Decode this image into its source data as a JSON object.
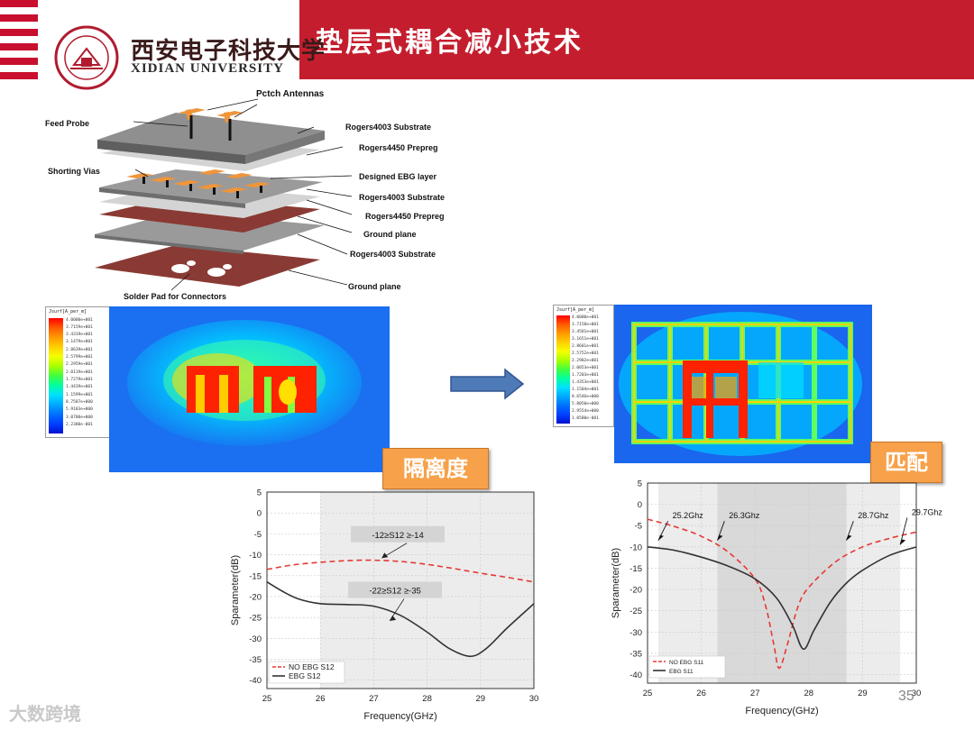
{
  "header": {
    "title": "垫层式耦合减小技术",
    "university_cn": "西安电子科技大学",
    "university_en": "XIDIAN UNIVERSITY",
    "logo_icon": "xidian-university-seal"
  },
  "stack_diagram": {
    "labels": {
      "patch_antennas": "Pctch Antennas",
      "feed_probe": "Feed Probe",
      "rogers4003_top": "Rogers4003  Substrate",
      "rogers4450_top": "Rogers4450 Prepreg",
      "shorting_vias": "Shorting Vias",
      "designed_ebg": "Designed EBG layer",
      "rogers4003_mid": "Rogers4003 Substrate",
      "rogers4450_mid": "Rogers4450 Prepreg",
      "ground_plane_1": "Ground plane",
      "rogers4003_bot": "Rogers4003 Substrate",
      "ground_plane_2": "Ground plane",
      "solder_pad": "Solder Pad for Connectors"
    },
    "colors": {
      "patch": "#f0953a",
      "substrate": "#9a9a9a",
      "prepreg": "#d4d4d4",
      "ground": "#8a3a34"
    }
  },
  "field_map_left": {
    "legend_title": "Jsurf[A_per_m]",
    "legend_values": [
      "4.0000e+001",
      "3.7159e+001",
      "3.4319e+001",
      "3.1479e+001",
      "2.8639e+001",
      "2.5799e+001",
      "2.2959e+001",
      "2.0119e+001",
      "1.7279e+001",
      "1.4439e+001",
      "1.1599e+001",
      "8.7587e+000",
      "5.9183e+000",
      "3.0780e+000",
      "2.2380e-001"
    ],
    "tag": "隔离度"
  },
  "field_map_right": {
    "legend_title": "Jsurf[A_per_m]",
    "legend_values": [
      "4.0000e+001",
      "3.7158e+001",
      "3.4581e+001",
      "3.1651e+001",
      "2.8601e+001",
      "2.5752e+001",
      "2.2902e+001",
      "2.0053e+001",
      "1.7203e+001",
      "1.4353e+001",
      "1.1504e+001",
      "8.6546e+000",
      "5.8050e+000",
      "2.9554e+000",
      "1.0580e-001"
    ],
    "tag": "匹配"
  },
  "arrow_icon": "right-arrow-icon",
  "chart_data": [
    {
      "type": "line",
      "xlabel": "Frequency(GHz)",
      "ylabel": "Sparameter(dB)",
      "xlim": [
        25,
        30
      ],
      "ylim": [
        -42,
        5
      ],
      "xticks": [
        25,
        26,
        27,
        28,
        29,
        30
      ],
      "yticks": [
        5,
        0,
        -5,
        -10,
        -15,
        -20,
        -25,
        -30,
        -35,
        -40
      ],
      "shaded_band": [
        26,
        30
      ],
      "series": [
        {
          "name": "NO EBG S12",
          "color": "#e53935",
          "dashed": true,
          "x": [
            25,
            25.5,
            26,
            26.5,
            27,
            27.5,
            28,
            28.5,
            29,
            29.5,
            30
          ],
          "y": [
            -13.5,
            -12.4,
            -11.8,
            -11.4,
            -11.3,
            -11.6,
            -12.3,
            -13.3,
            -14.4,
            -15.4,
            -16.5
          ]
        },
        {
          "name": "EBG S12",
          "color": "#333333",
          "dashed": false,
          "x": [
            25,
            25.3,
            25.6,
            26,
            26.5,
            27,
            27.5,
            28,
            28.4,
            28.8,
            29.1,
            29.5,
            30
          ],
          "y": [
            -16.5,
            -18.8,
            -20.6,
            -21.7,
            -21.9,
            -22.3,
            -24.5,
            -28.5,
            -32.3,
            -34.3,
            -32.5,
            -27.5,
            -21.7
          ]
        }
      ],
      "annotations": [
        {
          "text": "-12≥S12 ≥-14",
          "x": 27.45,
          "y": -5.3
        },
        {
          "text": "-22≥S12 ≥-35",
          "x": 27.4,
          "y": -18.6
        }
      ]
    },
    {
      "type": "line",
      "xlabel": "Frequency(GHz)",
      "ylabel": "Sparameter(dB)",
      "xlim": [
        25,
        30
      ],
      "ylim": [
        -42,
        5
      ],
      "xticks": [
        25,
        26,
        27,
        28,
        29,
        30
      ],
      "yticks": [
        5,
        0,
        -5,
        -10,
        -15,
        -20,
        -25,
        -30,
        -35,
        -40
      ],
      "shaded_bands": [
        [
          25.2,
          29.7
        ],
        [
          26.3,
          28.7
        ]
      ],
      "series": [
        {
          "name": "NO EBG S11",
          "color": "#e53935",
          "dashed": true,
          "x": [
            25,
            25.5,
            26,
            26.5,
            27,
            27.2,
            27.35,
            27.45,
            27.6,
            27.8,
            28,
            28.5,
            29,
            29.5,
            30
          ],
          "y": [
            -3.5,
            -5.2,
            -7.5,
            -11.2,
            -17.5,
            -24,
            -33,
            -38.5,
            -33,
            -24,
            -19.5,
            -13.5,
            -10,
            -8,
            -6.5
          ]
        },
        {
          "name": "EBG S11",
          "color": "#333333",
          "dashed": false,
          "x": [
            25,
            25.5,
            26,
            26.5,
            27,
            27.4,
            27.7,
            27.9,
            28.1,
            28.4,
            28.7,
            29,
            29.5,
            30
          ],
          "y": [
            -10,
            -10.8,
            -12.4,
            -14.5,
            -17.5,
            -22,
            -28.5,
            -34,
            -29.5,
            -23,
            -18.5,
            -15.5,
            -12,
            -10
          ]
        }
      ],
      "annotations": [
        {
          "text": "25.2Ghz",
          "x": 25.75,
          "y": -3.3
        },
        {
          "text": "26.3Ghz",
          "x": 26.8,
          "y": -3.3
        },
        {
          "text": "28.7Ghz",
          "x": 29.2,
          "y": -3.3
        },
        {
          "text": "29.7Ghz",
          "x": 30.2,
          "y": -2.5
        }
      ]
    }
  ],
  "page_number": "35",
  "watermark": "大数跨境"
}
